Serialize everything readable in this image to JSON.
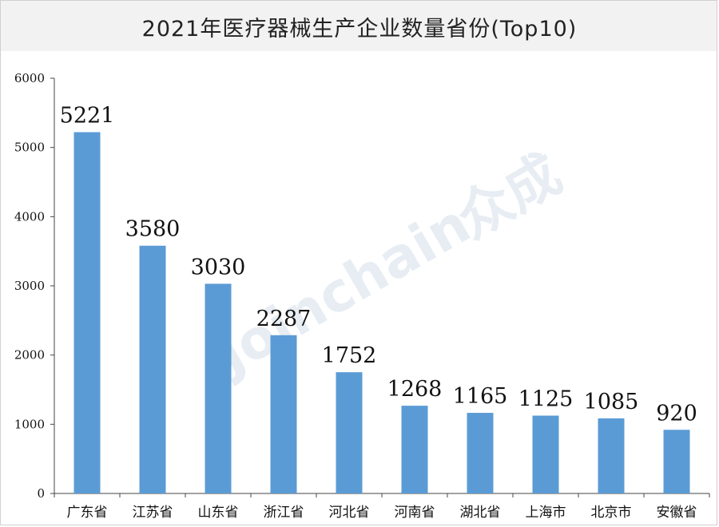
{
  "watermark": {
    "text": "Joinchain",
    "brand_text": "众成"
  },
  "colors": {
    "bar": "#5b9bd5",
    "axis": "#444444",
    "title_band": "#f2f2f2"
  },
  "chart_data": {
    "type": "bar",
    "title": "2021年医疗器械生产企业数量省份(Top10)",
    "xlabel": "",
    "ylabel": "",
    "ylim": [
      0,
      6000
    ],
    "yticks": [
      0,
      1000,
      2000,
      3000,
      4000,
      5000,
      6000
    ],
    "categories": [
      "广东省",
      "江苏省",
      "山东省",
      "浙江省",
      "河北省",
      "河南省",
      "湖北省",
      "上海市",
      "北京市",
      "安徽省"
    ],
    "values": [
      5221,
      3580,
      3030,
      2287,
      1752,
      1268,
      1165,
      1125,
      1085,
      920
    ],
    "grid": false,
    "legend": "none"
  }
}
